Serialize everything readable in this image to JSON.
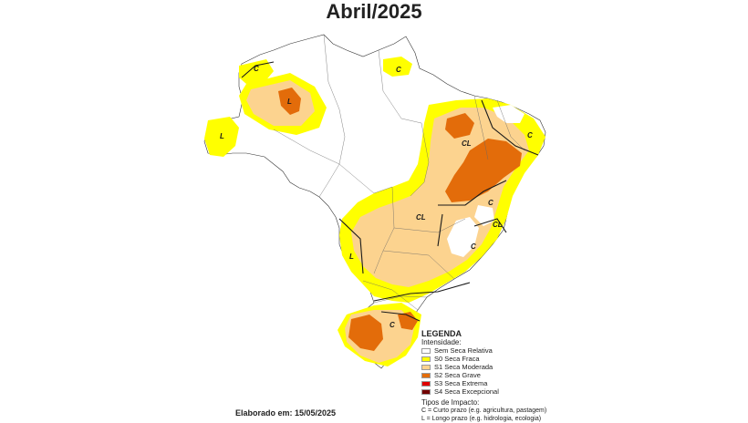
{
  "title": "Abril/2025",
  "legend": {
    "heading": "LEGENDA",
    "intensity_heading": "Intensidade:",
    "items": [
      {
        "label": "Sem Seca Relativa",
        "color": "#ffffff"
      },
      {
        "label": "S0 Seca Fraca",
        "color": "#ffff00"
      },
      {
        "label": "S1 Seca Moderada",
        "color": "#fcd38f"
      },
      {
        "label": "S2 Seca Grave",
        "color": "#e36c0a"
      },
      {
        "label": "S3 Seca Extrema",
        "color": "#e00000"
      },
      {
        "label": "S4 Seca Excepcional",
        "color": "#730000"
      }
    ],
    "impact_heading": "Tipos de Impacto:",
    "impact_short": "C = Curto prazo (e.g. agricultura, pastagem)",
    "impact_long": "L = Longo prazo (e.g. hidrologia, ecologia)"
  },
  "map_labels": {
    "c1": "C",
    "l1": "L",
    "l2": "L",
    "c2": "C",
    "cl1": "CL",
    "c3": "C",
    "c4": "C",
    "cl2": "CL",
    "cl3": "CL",
    "c5": "C",
    "l3": "L",
    "c6": "C"
  },
  "footer": "Elaborado em: 15/05/2025"
}
